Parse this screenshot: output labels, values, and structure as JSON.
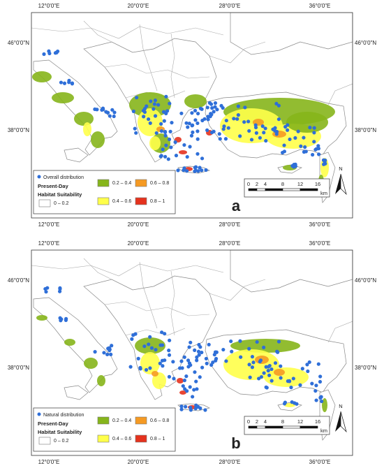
{
  "lon_labels": [
    "12°0'0\"E",
    "20°0'0\"E",
    "28°0'0\"E",
    "36°0'0\"E"
  ],
  "lat_labels": [
    "46°0'0\"N",
    "38°0'0\"N"
  ],
  "legend_title": [
    "Present-Day",
    "Habitat Suitability"
  ],
  "classes": [
    {
      "label": "0 – 0.2",
      "color": "#ffffff"
    },
    {
      "label": "0.2 – 0.4",
      "color": "#86b51b"
    },
    {
      "label": "0.4 – 0.6",
      "color": "#ffff4a"
    },
    {
      "label": "0.6 – 0.8",
      "color": "#f59a23"
    },
    {
      "label": "0.8 – 1",
      "color": "#e5321d"
    }
  ],
  "point_color": "#2f6fd8",
  "scale_labels": [
    "0",
    "2",
    "4",
    "8",
    "12",
    "16"
  ],
  "scale_unit": "km",
  "north": "N",
  "panels": [
    {
      "label": "a",
      "point_legend": "Overall distribution"
    },
    {
      "label": "b",
      "point_legend": "Natural distribution"
    }
  ]
}
